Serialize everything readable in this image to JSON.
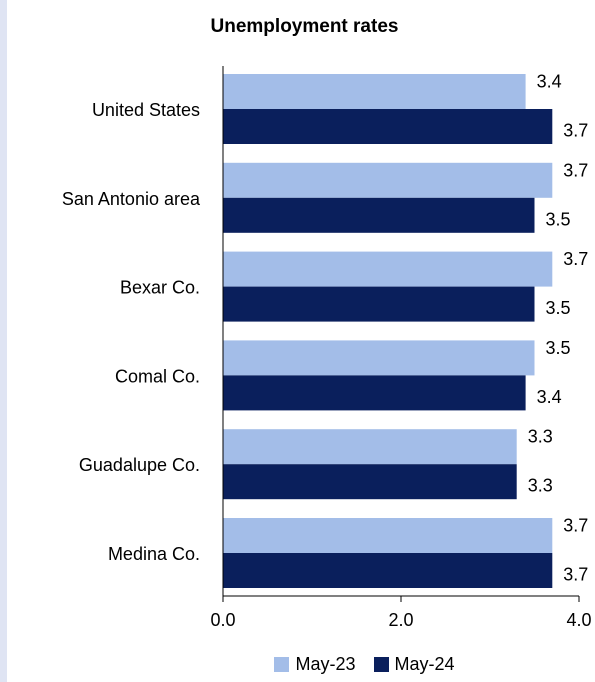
{
  "chart_data": {
    "type": "bar",
    "orientation": "horizontal",
    "title": "Unemployment rates",
    "categories": [
      "United States",
      "San Antonio area",
      "Bexar Co.",
      "Comal Co.",
      "Guadalupe Co.",
      "Medina Co."
    ],
    "series": [
      {
        "name": "May-23",
        "color": "#a3bde8",
        "values": [
          3.4,
          3.7,
          3.7,
          3.5,
          3.3,
          3.7
        ]
      },
      {
        "name": "May-24",
        "color": "#0a1f5c",
        "values": [
          3.7,
          3.5,
          3.5,
          3.4,
          3.3,
          3.7
        ]
      }
    ],
    "xlim": [
      0,
      4.0
    ],
    "xticks": [
      "0.0",
      "2.0",
      "4.0"
    ],
    "grid": false,
    "data_labels": true,
    "legend": "bottom"
  }
}
